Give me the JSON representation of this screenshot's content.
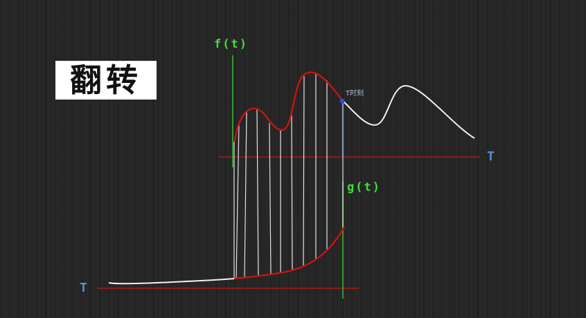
{
  "title": "翻转",
  "labels": {
    "f_axis": "f(t)",
    "g_axis": "g(t)",
    "t_axis_right": "T",
    "t_axis_left": "T",
    "t_moment": "T时刻"
  },
  "colors": {
    "background": "#262626",
    "curve_white": "#f2f2f2",
    "curve_red": "#c81414",
    "axis_red": "#8a1c1c",
    "axis_green": "#2e9c2e",
    "label_green": "#3fe03a",
    "label_blue": "#5b8fd6",
    "marker_blue": "#2a4fd8"
  }
}
